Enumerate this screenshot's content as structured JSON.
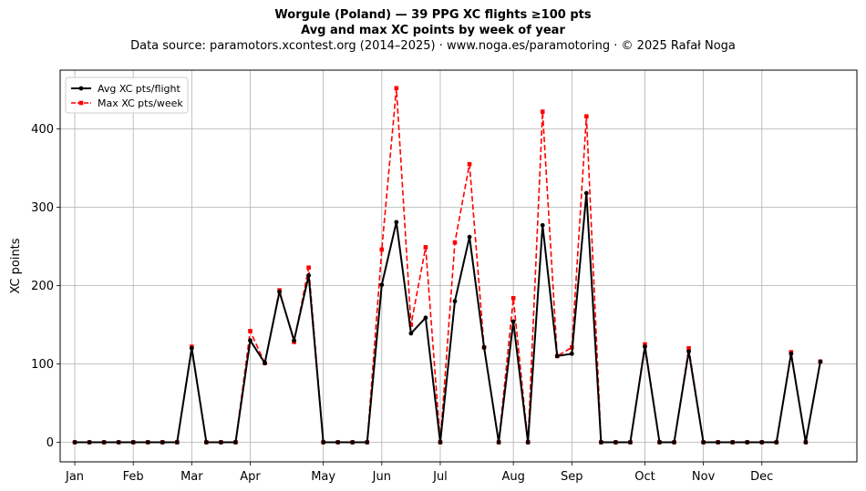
{
  "chart_data": {
    "type": "line",
    "title": "Worgule (Poland)  —  39 PPG XC flights ≥100 pts",
    "subtitle": "Avg and max XC points by week of year",
    "caption": "Data source: paramotors.xcontest.org (2014–2025)  ·  www.noga.es/paramotoring  ·  © 2025 Rafał Noga",
    "xlabel": "",
    "ylabel": "XC points",
    "xlim": [
      0,
      54.5
    ],
    "ylim": [
      -25,
      475
    ],
    "yticks": [
      0,
      100,
      200,
      300,
      400
    ],
    "xticks": [
      {
        "label": "Jan",
        "x": 1
      },
      {
        "label": "Feb",
        "x": 5
      },
      {
        "label": "Mar",
        "x": 9
      },
      {
        "label": "Apr",
        "x": 13
      },
      {
        "label": "May",
        "x": 18
      },
      {
        "label": "Jun",
        "x": 22
      },
      {
        "label": "Jul",
        "x": 26
      },
      {
        "label": "Aug",
        "x": 31
      },
      {
        "label": "Sep",
        "x": 35
      },
      {
        "label": "Oct",
        "x": 40
      },
      {
        "label": "Nov",
        "x": 44
      },
      {
        "label": "Dec",
        "x": 48
      }
    ],
    "grid": true,
    "legend_position": "top-left",
    "x": [
      1,
      2,
      3,
      4,
      5,
      6,
      7,
      8,
      9,
      10,
      11,
      12,
      13,
      14,
      15,
      16,
      17,
      18,
      19,
      20,
      21,
      22,
      23,
      24,
      25,
      26,
      27,
      28,
      29,
      30,
      31,
      32,
      33,
      34,
      35,
      36,
      37,
      38,
      39,
      40,
      41,
      42,
      43,
      44,
      45,
      46,
      47,
      48,
      49,
      50,
      51,
      52
    ],
    "series": [
      {
        "name": "Avg XC pts/flight",
        "color": "#000000",
        "style": "solid",
        "marker": "circle",
        "values": [
          0,
          0,
          0,
          0,
          0,
          0,
          0,
          0,
          120,
          0,
          0,
          0,
          130,
          101,
          192,
          130,
          213,
          0,
          0,
          0,
          0,
          201,
          281,
          139,
          159,
          0,
          180,
          262,
          121,
          0,
          154,
          0,
          277,
          110,
          113,
          318,
          0,
          0,
          0,
          122,
          0,
          0,
          116,
          0,
          0,
          0,
          0,
          0,
          0,
          113,
          0,
          103
        ]
      },
      {
        "name": "Max XC pts/week",
        "color": "#ff0000",
        "style": "dashed",
        "marker": "square",
        "values": [
          0,
          0,
          0,
          0,
          0,
          0,
          0,
          0,
          122,
          0,
          0,
          0,
          142,
          101,
          194,
          128,
          223,
          0,
          0,
          0,
          0,
          246,
          452,
          150,
          249,
          0,
          255,
          355,
          121,
          0,
          184,
          0,
          422,
          110,
          121,
          416,
          0,
          0,
          0,
          125,
          0,
          0,
          120,
          0,
          0,
          0,
          0,
          0,
          0,
          115,
          0,
          103
        ]
      }
    ]
  }
}
